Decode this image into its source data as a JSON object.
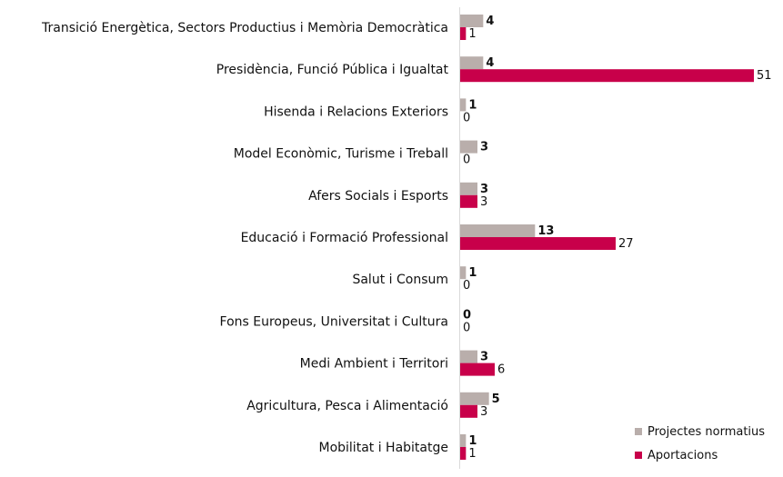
{
  "chart_data": {
    "type": "bar",
    "orientation": "horizontal",
    "categories": [
      "Transició Energètica, Sectors Productius i Memòria Democràtica",
      "Presidència, Funció Pública i Igualtat",
      "Hisenda i Relacions Exteriors",
      "Model Econòmic, Turisme i Treball",
      "Afers Socials i Esports",
      "Educació i Formació Professional",
      "Salut i Consum",
      "Fons Europeus, Universitat i Cultura",
      "Medi Ambient i Territori",
      "Agricultura, Pesca i Alimentació",
      "Mobilitat i Habitatge"
    ],
    "series": [
      {
        "name": "Projectes normatius",
        "color": "#b9aeab",
        "values": [
          4,
          4,
          1,
          3,
          3,
          13,
          1,
          0,
          3,
          5,
          1
        ]
      },
      {
        "name": "Aportacions",
        "color": "#c8004a",
        "values": [
          1,
          51,
          0,
          0,
          3,
          27,
          0,
          0,
          6,
          3,
          1
        ]
      }
    ],
    "xlim": [
      0,
      51
    ],
    "grid": false,
    "legend_position": "bottom-right"
  }
}
